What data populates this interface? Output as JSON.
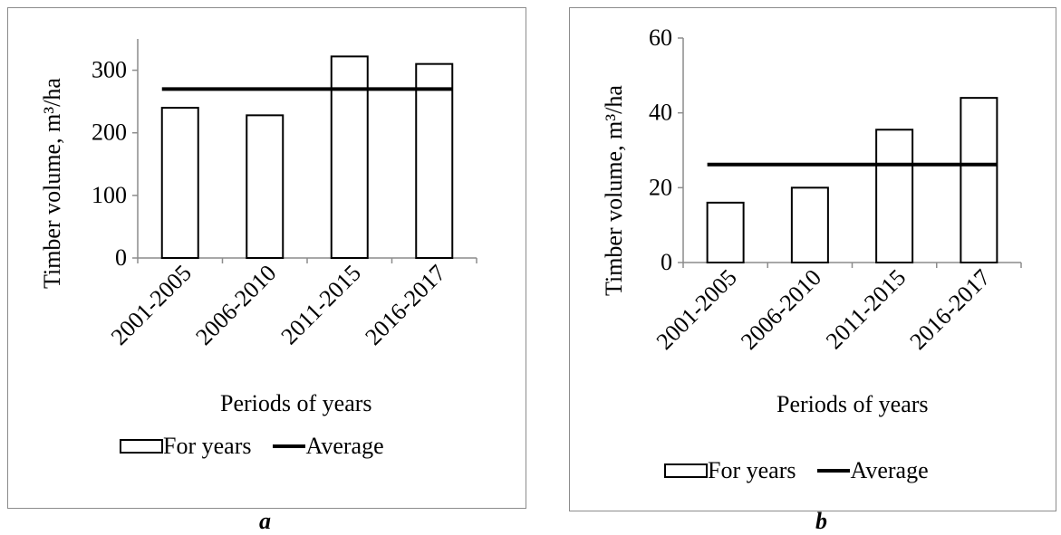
{
  "chart_data": [
    {
      "type": "bar",
      "ylabel": "Timber volume, m³/ha",
      "xlabel": "Periods of years",
      "categories": [
        "2001-2005",
        "2006-2010",
        "2011-2015",
        "2016-2017"
      ],
      "ylim": [
        0,
        350
      ],
      "yticks": [
        0,
        100,
        200,
        300
      ],
      "series": [
        {
          "name": "For years",
          "type": "bar",
          "values": [
            240,
            228,
            322,
            310
          ]
        },
        {
          "name": "Average",
          "type": "line",
          "values": [
            270,
            270,
            270,
            270
          ]
        }
      ],
      "legend": "bottom",
      "grid": false,
      "caption": "a"
    },
    {
      "type": "bar",
      "ylabel": "Timber volume, m³/ha",
      "xlabel": "Periods of years",
      "categories": [
        "2001-2005",
        "2006-2010",
        "2011-2015",
        "2016-2017"
      ],
      "ylim": [
        0,
        60
      ],
      "yticks": [
        0,
        20,
        40,
        60
      ],
      "series": [
        {
          "name": "For years",
          "type": "bar",
          "values": [
            16,
            20,
            35.5,
            44
          ]
        },
        {
          "name": "Average",
          "type": "line",
          "values": [
            26.2,
            26.2,
            26.2,
            26.2
          ]
        }
      ],
      "legend": "bottom",
      "grid": false,
      "caption": "b"
    }
  ]
}
